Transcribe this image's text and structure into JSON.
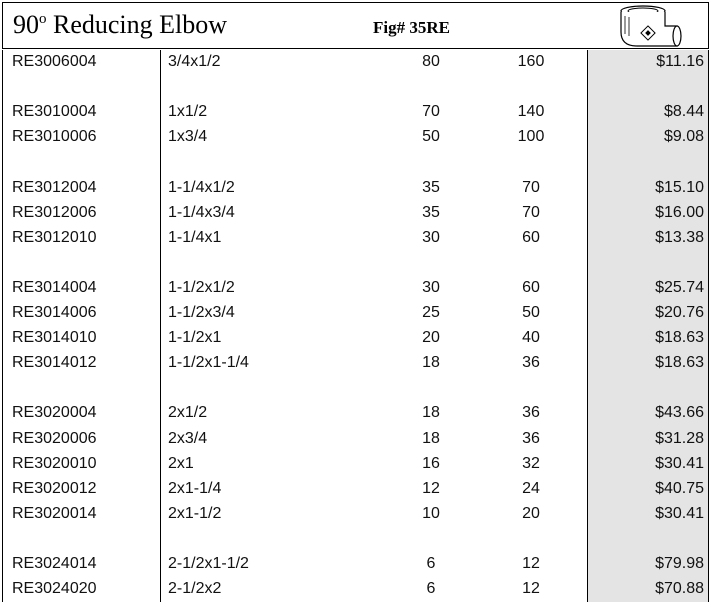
{
  "header": {
    "title_number": "90",
    "title_degree": "o",
    "title_text": "Reducing Elbow",
    "figure": "Fig# 35RE"
  },
  "table": {
    "groups": [
      [
        [
          "RE3006004",
          "3/4x1/2",
          "80",
          "160",
          "$11.16"
        ]
      ],
      [
        [
          "RE3010004",
          "1x1/2",
          "70",
          "140",
          "$8.44"
        ],
        [
          "RE3010006",
          "1x3/4",
          "50",
          "100",
          "$9.08"
        ]
      ],
      [
        [
          "RE3012004",
          "1-1/4x1/2",
          "35",
          "70",
          "$15.10"
        ],
        [
          "RE3012006",
          "1-1/4x3/4",
          "35",
          "70",
          "$16.00"
        ],
        [
          "RE3012010",
          "1-1/4x1",
          "30",
          "60",
          "$13.38"
        ]
      ],
      [
        [
          "RE3014004",
          "1-1/2x1/2",
          "30",
          "60",
          "$25.74"
        ],
        [
          "RE3014006",
          "1-1/2x3/4",
          "25",
          "50",
          "$20.76"
        ],
        [
          "RE3014010",
          "1-1/2x1",
          "20",
          "40",
          "$18.63"
        ],
        [
          "RE3014012",
          "1-1/2x1-1/4",
          "18",
          "36",
          "$18.63"
        ]
      ],
      [
        [
          "RE3020004",
          "2x1/2",
          "18",
          "36",
          "$43.66"
        ],
        [
          "RE3020006",
          "2x3/4",
          "18",
          "36",
          "$31.28"
        ],
        [
          "RE3020010",
          "2x1",
          "16",
          "32",
          "$30.41"
        ],
        [
          "RE3020012",
          "2x1-1/4",
          "12",
          "24",
          "$40.75"
        ],
        [
          "RE3020014",
          "2x1-1/2",
          "10",
          "20",
          "$30.41"
        ]
      ],
      [
        [
          "RE3024014",
          "2-1/2x1-1/2",
          "6",
          "12",
          "$79.98"
        ],
        [
          "RE3024020",
          "2-1/2x2",
          "6",
          "12",
          "$70.88"
        ]
      ]
    ]
  }
}
